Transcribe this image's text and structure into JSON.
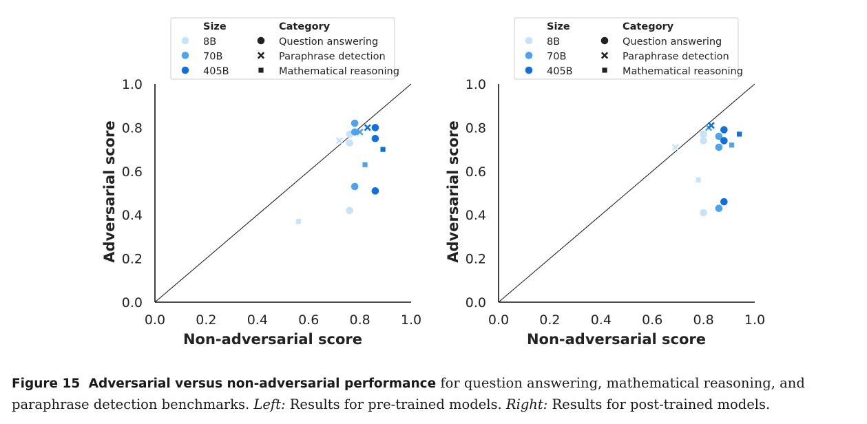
{
  "legend": {
    "size_title": "Size",
    "category_title": "Category",
    "sizes": [
      {
        "label": "8B",
        "color": "#c6e3fb"
      },
      {
        "label": "70B",
        "color": "#4fa3ec"
      },
      {
        "label": "405B",
        "color": "#0f6fdb"
      }
    ],
    "categories": [
      {
        "label": "Question answering",
        "marker": "circle"
      },
      {
        "label": "Paraphrase detection",
        "marker": "x"
      },
      {
        "label": "Mathematical reasoning",
        "marker": "square"
      }
    ]
  },
  "chart_data": [
    {
      "type": "scatter",
      "xlabel": "Non-adversarial score",
      "ylabel": "Adversarial score",
      "xlim": [
        0.0,
        1.0
      ],
      "ylim": [
        0.0,
        1.0
      ],
      "xticks": [
        "0.0",
        "0.2",
        "0.4",
        "0.6",
        "0.8",
        "1.0"
      ],
      "yticks": [
        "0.0",
        "0.2",
        "0.4",
        "0.6",
        "0.8",
        "1.0"
      ],
      "reference_line": "y = x",
      "points": [
        {
          "x": 0.76,
          "y": 0.77,
          "size": "8B",
          "category": "Question answering"
        },
        {
          "x": 0.76,
          "y": 0.73,
          "size": "8B",
          "category": "Question answering"
        },
        {
          "x": 0.76,
          "y": 0.42,
          "size": "8B",
          "category": "Question answering"
        },
        {
          "x": 0.72,
          "y": 0.74,
          "size": "8B",
          "category": "Paraphrase detection"
        },
        {
          "x": 0.56,
          "y": 0.37,
          "size": "8B",
          "category": "Mathematical reasoning"
        },
        {
          "x": 0.78,
          "y": 0.82,
          "size": "70B",
          "category": "Question answering"
        },
        {
          "x": 0.78,
          "y": 0.78,
          "size": "70B",
          "category": "Question answering"
        },
        {
          "x": 0.78,
          "y": 0.53,
          "size": "70B",
          "category": "Question answering"
        },
        {
          "x": 0.8,
          "y": 0.78,
          "size": "70B",
          "category": "Paraphrase detection"
        },
        {
          "x": 0.82,
          "y": 0.63,
          "size": "70B",
          "category": "Mathematical reasoning"
        },
        {
          "x": 0.86,
          "y": 0.8,
          "size": "405B",
          "category": "Question answering"
        },
        {
          "x": 0.86,
          "y": 0.75,
          "size": "405B",
          "category": "Question answering"
        },
        {
          "x": 0.86,
          "y": 0.51,
          "size": "405B",
          "category": "Question answering"
        },
        {
          "x": 0.83,
          "y": 0.8,
          "size": "405B",
          "category": "Paraphrase detection"
        },
        {
          "x": 0.89,
          "y": 0.7,
          "size": "405B",
          "category": "Mathematical reasoning"
        }
      ]
    },
    {
      "type": "scatter",
      "xlabel": "Non-adversarial score",
      "ylabel": "Adversarial score",
      "xlim": [
        0.0,
        1.0
      ],
      "ylim": [
        0.0,
        1.0
      ],
      "xticks": [
        "0.0",
        "0.2",
        "0.4",
        "0.6",
        "0.8",
        "1.0"
      ],
      "yticks": [
        "0.0",
        "0.2",
        "0.4",
        "0.6",
        "0.8",
        "1.0"
      ],
      "reference_line": "y = x",
      "points": [
        {
          "x": 0.8,
          "y": 0.77,
          "size": "8B",
          "category": "Question answering"
        },
        {
          "x": 0.8,
          "y": 0.74,
          "size": "8B",
          "category": "Question answering"
        },
        {
          "x": 0.8,
          "y": 0.41,
          "size": "8B",
          "category": "Question answering"
        },
        {
          "x": 0.69,
          "y": 0.71,
          "size": "8B",
          "category": "Paraphrase detection"
        },
        {
          "x": 0.78,
          "y": 0.56,
          "size": "8B",
          "category": "Mathematical reasoning"
        },
        {
          "x": 0.86,
          "y": 0.76,
          "size": "70B",
          "category": "Question answering"
        },
        {
          "x": 0.86,
          "y": 0.71,
          "size": "70B",
          "category": "Question answering"
        },
        {
          "x": 0.86,
          "y": 0.43,
          "size": "70B",
          "category": "Question answering"
        },
        {
          "x": 0.82,
          "y": 0.8,
          "size": "70B",
          "category": "Paraphrase detection"
        },
        {
          "x": 0.91,
          "y": 0.72,
          "size": "70B",
          "category": "Mathematical reasoning"
        },
        {
          "x": 0.88,
          "y": 0.79,
          "size": "405B",
          "category": "Question answering"
        },
        {
          "x": 0.88,
          "y": 0.74,
          "size": "405B",
          "category": "Question answering"
        },
        {
          "x": 0.88,
          "y": 0.46,
          "size": "405B",
          "category": "Question answering"
        },
        {
          "x": 0.83,
          "y": 0.81,
          "size": "405B",
          "category": "Paraphrase detection"
        },
        {
          "x": 0.94,
          "y": 0.77,
          "size": "405B",
          "category": "Mathematical reasoning"
        }
      ]
    }
  ],
  "caption": {
    "label": "Figure 15",
    "title": "Adversarial versus non-adversarial performance",
    "text1": " for question answering, mathematical reasoning, and paraphrase detection benchmarks. ",
    "left_label": "Left:",
    "text2": " Results for pre-trained models. ",
    "right_label": "Right:",
    "text3": " Results for post-trained models."
  }
}
